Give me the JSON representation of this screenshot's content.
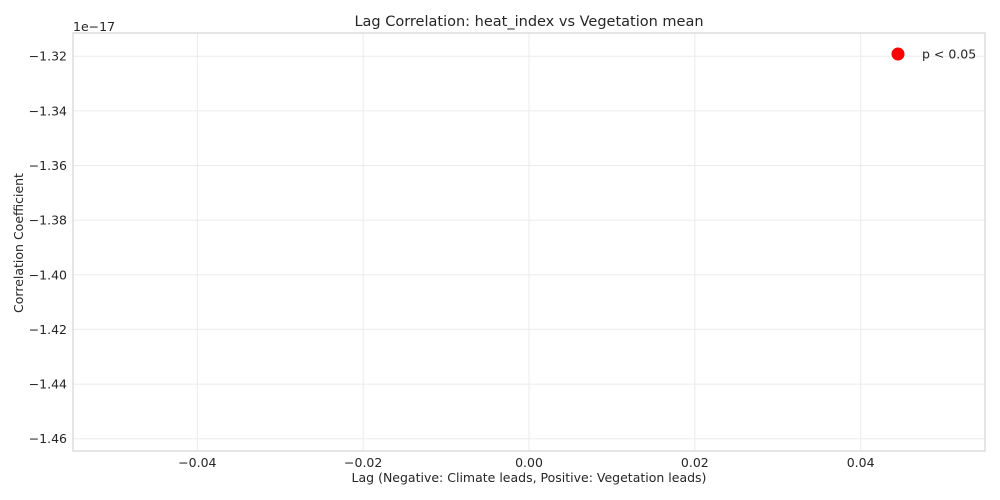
{
  "chart_data": {
    "type": "scatter",
    "title": "Lag Correlation: heat_index vs Vegetation mean",
    "xlabel": "Lag (Negative: Climate leads, Positive: Vegetation leads)",
    "ylabel": "Correlation Coefficient",
    "offset_text": "1e−17",
    "xlim": [
      -0.055,
      0.055
    ],
    "ylim": [
      -1.4645,
      -1.3115
    ],
    "xticks": [
      -0.04,
      -0.02,
      0.0,
      0.02,
      0.04
    ],
    "xtick_labels": [
      "−0.04",
      "−0.02",
      "0.00",
      "0.02",
      "0.04"
    ],
    "yticks": [
      -1.32,
      -1.34,
      -1.36,
      -1.38,
      -1.4,
      -1.42,
      -1.44,
      -1.46
    ],
    "ytick_labels": [
      "−1.32",
      "−1.34",
      "−1.36",
      "−1.38",
      "−1.40",
      "−1.42",
      "−1.44",
      "−1.46"
    ],
    "grid": true,
    "legend": {
      "placement": "top-right",
      "entries": [
        {
          "label": "p < 0.05",
          "color": "#ff0000",
          "marker": "circle"
        }
      ]
    },
    "points": []
  }
}
